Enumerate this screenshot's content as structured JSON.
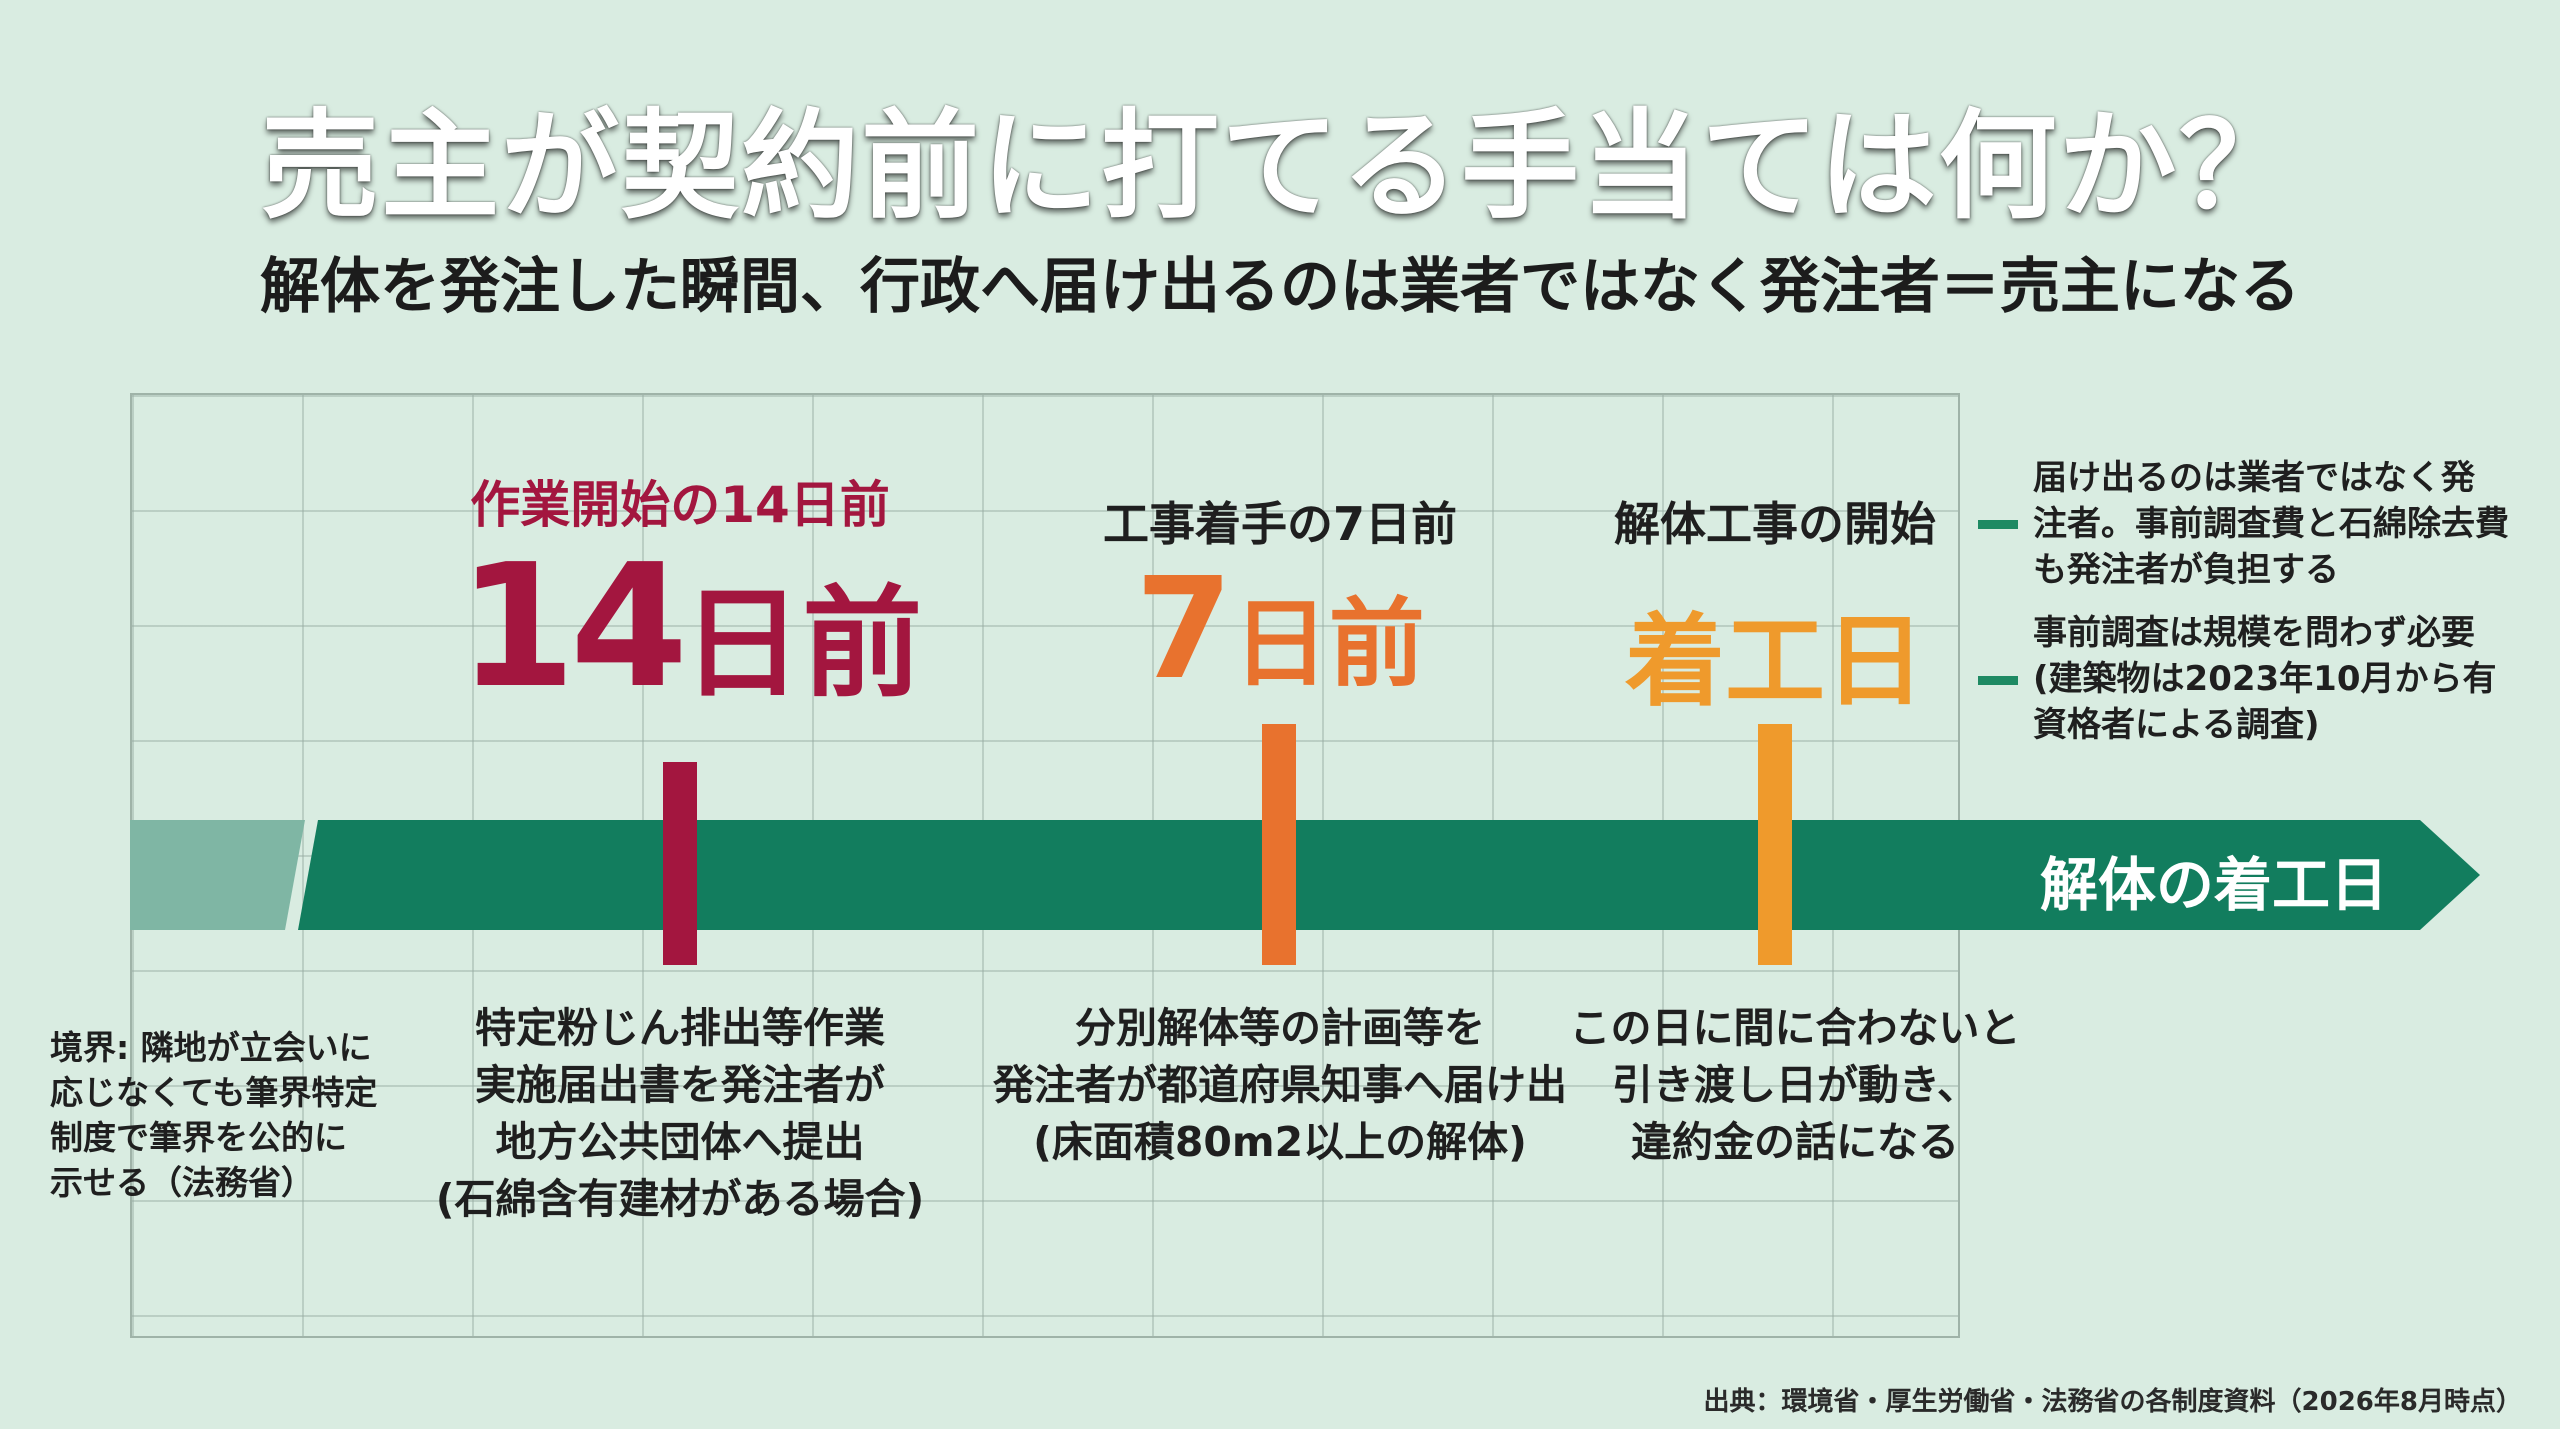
{
  "title": "売主が契約前に打てる手当ては何か？",
  "subtitle": "解体を発注した瞬間、行政へ届け出るのは業者ではなく発注者＝売主になる",
  "timeline_label": "解体の着工日",
  "milestones": [
    {
      "label": "作業開始の14日前",
      "big": "14日前",
      "big_number": "14",
      "big_suffix": "日前",
      "color": "#a3163f",
      "description": [
        "特定粉じん排出等作業",
        "実施届出書を発注者が",
        "地方公共団体へ提出",
        "(石綿含有建材がある場合)"
      ]
    },
    {
      "label": "工事着手の7日前",
      "big": "7日前",
      "big_number": "7",
      "big_suffix": "日前",
      "color": "#e8722e",
      "description": [
        "分別解体等の計画等を",
        "発注者が都道府県知事へ届け出",
        "(床面積80m2以上の解体)"
      ]
    },
    {
      "label": "解体工事の開始",
      "big": "着工日",
      "color": "#ef9a2c",
      "description": [
        "この日に間に合わないと",
        "引き渡し日が動き、",
        "違約金の話になる"
      ]
    }
  ],
  "side_note": [
    "境界: 隣地が立会いに",
    "応じなくても筆界特定",
    "制度で筆界を公的に",
    "示せる（法務省）"
  ],
  "notes": [
    [
      "届け出るのは業者ではなく発",
      "注者。事前調査費と石綿除去費",
      "も発注者が負担する"
    ],
    [
      "事前調査は規模を問わず必要",
      "(建築物は2023年10月から有",
      "資格者による調査)"
    ]
  ],
  "source": "出典：環境省・厚生労働省・法務省の各制度資料（2026年8月時点）",
  "colors": {
    "background": "#d9ece1",
    "arrow": "#127d5e",
    "arrow_faded": "#7fb6a4",
    "accent_green": "#1e8a63"
  }
}
